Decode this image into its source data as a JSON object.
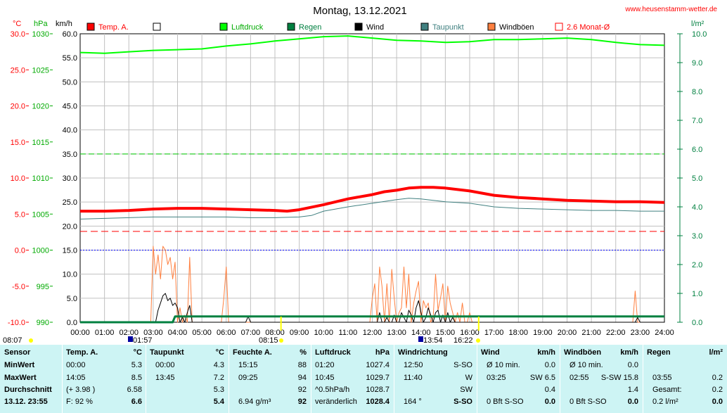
{
  "header": {
    "title": "Montag, 13.12.2021",
    "website": "www.heusenstamm-wetter.de",
    "unit_temp": "°C",
    "unit_pressure": "hPa",
    "unit_wind": "km/h",
    "unit_rain": "l/m²"
  },
  "legend": [
    {
      "label": "Temp. A.",
      "color": "#ff0000",
      "style": "filled"
    },
    {
      "label": "",
      "color": "#000000",
      "style": "hollow"
    },
    {
      "label": "Luftdruck",
      "color": "#00ff00",
      "style": "filled"
    },
    {
      "label": "Regen",
      "color": "#008040",
      "style": "filled"
    },
    {
      "label": "Wind",
      "color": "#000000",
      "style": "filled"
    },
    {
      "label": "Taupunkt",
      "color": "#408080",
      "style": "filled"
    },
    {
      "label": "Windböen",
      "color": "#ff8040",
      "style": "filled"
    },
    {
      "label": "2.6 Monat-Ø",
      "color": "#ff0000",
      "style": "hollow"
    }
  ],
  "chart_data": {
    "type": "line",
    "x_ticks": [
      "00:00",
      "01:00",
      "02:00",
      "03:00",
      "04:00",
      "05:00",
      "06:00",
      "07:00",
      "08:00",
      "09:00",
      "10:00",
      "11:00",
      "12:00",
      "13:00",
      "14:00",
      "15:00",
      "16:00",
      "17:00",
      "18:00",
      "19:00",
      "20:00",
      "21:00",
      "22:00",
      "23:00",
      "24:00"
    ],
    "y_temp_ticks": [
      "30.0",
      "25.0",
      "20.0",
      "15.0",
      "10.0",
      "5.0",
      "0.0",
      "-5.0",
      "-10.0"
    ],
    "y_pressure_ticks": [
      "1030",
      "1025",
      "1020",
      "1015",
      "1010",
      "1005",
      "1000",
      "995",
      "990"
    ],
    "y_wind_ticks": [
      "60.0",
      "55.0",
      "50.0",
      "45.0",
      "40.0",
      "35.0",
      "30.0",
      "25.0",
      "20.0",
      "15.0",
      "10.0",
      "5.0",
      "0.0"
    ],
    "y_rain_ticks": [
      "10.0",
      "9.0",
      "8.0",
      "7.0",
      "6.0",
      "5.0",
      "4.0",
      "3.0",
      "2.0",
      "1.0",
      "0.0"
    ],
    "ylim_temp": [
      -10,
      30
    ],
    "ylim_pressure": [
      990,
      1030
    ],
    "ylim_wind": [
      0,
      60
    ],
    "ylim_rain": [
      0,
      10
    ],
    "grid": true,
    "series": [
      {
        "name": "Temp. A.",
        "axis": "temp",
        "color": "#ff0000",
        "x": [
          0,
          1,
          2,
          3,
          4,
          5,
          6,
          7,
          8,
          8.5,
          9,
          10,
          11,
          12,
          12.5,
          13,
          13.5,
          14,
          14.5,
          15,
          16,
          17,
          18,
          19,
          20,
          21,
          22,
          23,
          24
        ],
        "y": [
          5.4,
          5.4,
          5.5,
          5.7,
          5.8,
          5.8,
          5.7,
          5.6,
          5.5,
          5.4,
          5.6,
          6.3,
          7.1,
          7.7,
          8.1,
          8.3,
          8.6,
          8.7,
          8.7,
          8.6,
          8.2,
          7.6,
          7.3,
          7.1,
          6.9,
          6.8,
          6.7,
          6.7,
          6.6
        ]
      },
      {
        "name": "Taupunkt",
        "axis": "temp",
        "color": "#408080",
        "x": [
          0,
          1,
          2,
          3,
          4,
          5,
          6,
          7,
          8,
          9,
          9.5,
          10,
          11,
          12,
          13,
          13.5,
          14,
          15,
          16,
          17,
          18,
          19,
          20,
          21,
          22,
          23,
          24
        ],
        "y": [
          4.3,
          4.4,
          4.5,
          4.6,
          4.6,
          4.6,
          4.6,
          4.5,
          4.5,
          4.6,
          4.8,
          5.4,
          6.0,
          6.5,
          7.0,
          7.2,
          7.1,
          6.7,
          6.5,
          6.0,
          5.8,
          5.7,
          5.6,
          5.5,
          5.5,
          5.4,
          5.4
        ]
      },
      {
        "name": "Monat-Ø",
        "axis": "temp",
        "color": "#ff0000",
        "dash": true,
        "x": [
          0,
          24
        ],
        "y": [
          2.6,
          2.6
        ]
      },
      {
        "name": "Luftdruck",
        "axis": "pressure",
        "color": "#00ff00",
        "x": [
          0,
          1,
          2,
          3,
          4,
          5,
          6,
          7,
          8,
          9,
          10,
          11,
          12,
          13,
          14,
          15,
          16,
          17,
          18,
          19,
          20,
          21,
          22,
          23,
          24
        ],
        "y": [
          1027.4,
          1027.3,
          1027.5,
          1027.7,
          1027.8,
          1027.9,
          1028.3,
          1028.6,
          1029.0,
          1029.3,
          1029.6,
          1029.7,
          1029.4,
          1029.1,
          1029.0,
          1028.8,
          1028.9,
          1029.2,
          1029.2,
          1029.3,
          1029.4,
          1029.2,
          1028.8,
          1028.5,
          1028.4
        ]
      },
      {
        "name": "Windböen",
        "axis": "wind",
        "color": "#ff8040",
        "x": [
          0,
          2.9,
          3.0,
          3.1,
          3.2,
          3.3,
          3.4,
          3.5,
          3.6,
          3.7,
          3.8,
          3.9,
          4.0,
          4.1,
          4.2,
          4.3,
          4.4,
          4.5,
          4.6,
          4.7,
          4.8,
          4.9,
          5.0,
          5.8,
          5.9,
          6.0,
          6.1,
          6.2,
          11.9,
          12.0,
          12.1,
          12.2,
          12.3,
          12.4,
          12.5,
          12.6,
          12.7,
          12.8,
          12.9,
          13.0,
          13.1,
          13.2,
          13.3,
          13.4,
          13.5,
          13.6,
          13.7,
          13.8,
          13.9,
          14.0,
          14.1,
          14.2,
          14.3,
          14.4,
          14.5,
          14.6,
          14.7,
          14.8,
          14.9,
          15.0,
          15.1,
          15.2,
          15.3,
          15.4,
          15.5,
          15.6,
          15.7,
          15.8,
          15.9,
          16.0,
          16.1,
          16.3,
          22.7,
          22.8,
          22.9,
          23.0,
          24
        ],
        "y": [
          0,
          0,
          15.8,
          10.0,
          14.0,
          9.0,
          15.8,
          15.0,
          12.0,
          13.5,
          9.0,
          12.5,
          0,
          3.0,
          0,
          1.5,
          0,
          13.5,
          0,
          0,
          0,
          0,
          0,
          0,
          5.0,
          11.5,
          0,
          0,
          0,
          5.0,
          8.0,
          0,
          11.5,
          7.5,
          0,
          8.0,
          0,
          11.0,
          5.0,
          0,
          2.0,
          3.0,
          11.5,
          3.0,
          10.0,
          0,
          4.0,
          6.5,
          8.5,
          0,
          4.5,
          3.0,
          4.0,
          0,
          1.0,
          10.0,
          2.5,
          5.0,
          8.0,
          0,
          7.5,
          4.0,
          2.0,
          0,
          2.0,
          0,
          4.0,
          0,
          0,
          2.0,
          0,
          0,
          0,
          6.5,
          0,
          0,
          0
        ]
      },
      {
        "name": "Wind",
        "axis": "wind",
        "color": "#000000",
        "x": [
          0,
          3.1,
          3.2,
          3.3,
          3.4,
          3.5,
          3.6,
          3.7,
          3.8,
          3.9,
          4.0,
          4.1,
          4.2,
          4.3,
          4.4,
          4.5,
          4.6,
          4.7,
          6.8,
          6.9,
          7.0,
          12.2,
          12.3,
          12.4,
          12.5,
          12.6,
          12.7,
          12.8,
          12.9,
          13.0,
          13.1,
          13.2,
          13.3,
          13.4,
          13.5,
          13.6,
          13.7,
          13.8,
          13.9,
          14.0,
          14.1,
          14.2,
          14.3,
          14.4,
          14.5,
          14.6,
          14.7,
          14.8,
          14.9,
          15.0,
          15.1,
          15.2,
          15.3,
          15.4,
          15.5,
          15.6,
          22.8,
          22.9,
          23.0,
          24
        ],
        "y": [
          0,
          0,
          2.5,
          4.0,
          5.5,
          6.0,
          4.5,
          5.0,
          3.5,
          4.0,
          3.0,
          0,
          1.0,
          0,
          2.0,
          3.5,
          0,
          0,
          0,
          1.2,
          0,
          0,
          2.0,
          0,
          0,
          1.0,
          0,
          0,
          1.5,
          0,
          0,
          2.0,
          1.0,
          0,
          2.5,
          1.5,
          0,
          3.0,
          4.5,
          2.0,
          0,
          1.0,
          3.0,
          1.5,
          0,
          2.0,
          2.5,
          0,
          1.5,
          0,
          2.0,
          0,
          1.0,
          0,
          0,
          0,
          0,
          1.0,
          0,
          0
        ]
      },
      {
        "name": "Regen",
        "axis": "rain",
        "color": "#008040",
        "x": [
          0,
          3.8,
          3.9,
          24
        ],
        "y": [
          0,
          0,
          0.2,
          0.2
        ]
      }
    ],
    "blue_dotted_temp": 0.0,
    "green_dashed_wind": 35.0,
    "markers": [
      {
        "label": "08:07",
        "kind": "sun"
      },
      {
        "label": "01:57",
        "kind": "low"
      },
      {
        "label": "08:15",
        "kind": "sun"
      },
      {
        "label": "13:54",
        "kind": "high"
      },
      {
        "label": "16:22",
        "kind": "sun"
      }
    ]
  },
  "table": {
    "row_labels": [
      "Sensor",
      "MinWert",
      "MaxWert",
      "Durchschnitt",
      "13.12.  23:55"
    ],
    "temp": {
      "header": "Temp. A.",
      "unit": "°C",
      "rows": [
        [
          "00:00",
          "5.3"
        ],
        [
          "14:05",
          "8.5"
        ],
        [
          "(+ 3.98 )",
          "6.58"
        ],
        [
          "F: 92 %",
          "6.6"
        ]
      ]
    },
    "dew": {
      "header": "Taupunkt",
      "unit": "°C",
      "rows": [
        [
          "00:00",
          "4.3"
        ],
        [
          "13:45",
          "7.2"
        ],
        [
          "",
          "5.3"
        ],
        [
          "",
          "5.4"
        ]
      ]
    },
    "hum": {
      "header": "Feuchte A.",
      "unit": "%",
      "rows": [
        [
          "15:15",
          "88"
        ],
        [
          "09:25",
          "94"
        ],
        [
          "",
          "92"
        ],
        [
          "6.94 g/m³",
          "92"
        ]
      ]
    },
    "press": {
      "header": "Luftdruck",
      "unit": "hPa",
      "rows": [
        [
          "01:20",
          "1027.4"
        ],
        [
          "10:45",
          "1029.7"
        ],
        [
          "^0.5hPa/h",
          "1028.7"
        ],
        [
          "veränderlich",
          "1028.4"
        ]
      ]
    },
    "wdir": {
      "header": "Windrichtung",
      "unit": "",
      "rows": [
        [
          "12:50",
          "S-SO"
        ],
        [
          "11:40",
          "W"
        ],
        [
          "",
          "SW"
        ],
        [
          "164 °",
          "S-SO"
        ]
      ]
    },
    "wind": {
      "header": "Wind",
      "unit": "km/h",
      "rows": [
        [
          "Ø 10 min.",
          "0.0"
        ],
        [
          "03:25",
          "SW 6.5"
        ],
        [
          "",
          "0.4"
        ],
        [
          "0 Bft S-SO",
          "0.0"
        ]
      ]
    },
    "gust": {
      "header": "Windböen",
      "unit": "km/h",
      "rows": [
        [
          "Ø 10 min.",
          "0.0"
        ],
        [
          "02:55",
          "S-SW 15.8"
        ],
        [
          "",
          "1.4"
        ],
        [
          "0 Bft S-SO",
          "0.0"
        ]
      ]
    },
    "rain": {
      "header": "Regen",
      "unit": "l/m²",
      "rows": [
        [
          "",
          "",
          ""
        ],
        [
          "03:55",
          "",
          "0.2"
        ],
        [
          "Gesamt:",
          "",
          "0.2"
        ],
        [
          "0.2 l/m²",
          "",
          "0.0"
        ]
      ]
    }
  }
}
